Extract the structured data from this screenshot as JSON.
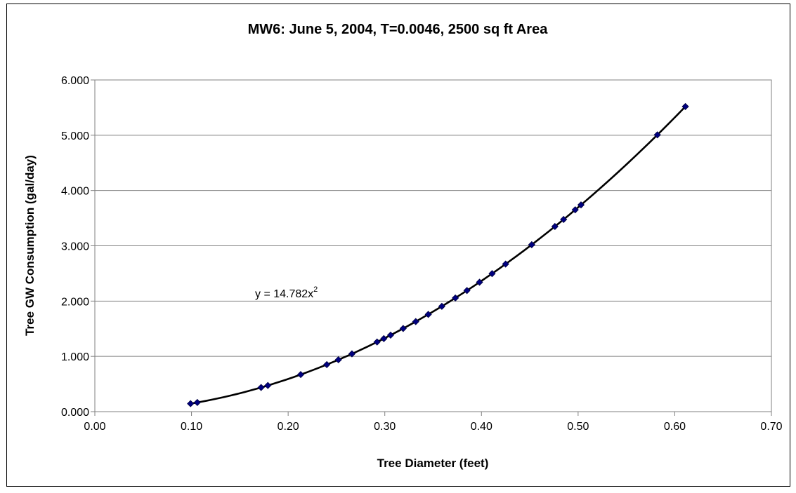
{
  "chart_data": {
    "type": "scatter",
    "title": "MW6: June 5,  2004, T=0.0046,  2500 sq ft Area",
    "xlabel": "Tree Diameter (feet)",
    "ylabel": "Tree GW Consumption (gal/day)",
    "xlim": [
      0.0,
      0.7
    ],
    "ylim": [
      0.0,
      6.0
    ],
    "x_ticks": [
      "0.00",
      "0.10",
      "0.20",
      "0.30",
      "0.40",
      "0.50",
      "0.60",
      "0.70"
    ],
    "y_ticks": [
      "0.000",
      "1.000",
      "2.000",
      "3.000",
      "4.000",
      "5.000",
      "6.000"
    ],
    "grid": "horizontal major gridlines",
    "legend": "none",
    "series": [
      {
        "marker": "diamond",
        "color": "#000080",
        "x": [
          0.099,
          0.106,
          0.172,
          0.179,
          0.213,
          0.24,
          0.252,
          0.266,
          0.292,
          0.299,
          0.306,
          0.319,
          0.332,
          0.345,
          0.359,
          0.373,
          0.385,
          0.398,
          0.411,
          0.425,
          0.452,
          0.476,
          0.485,
          0.497,
          0.503,
          0.582,
          0.611
        ],
        "y": [
          0.145,
          0.166,
          0.437,
          0.474,
          0.671,
          0.851,
          0.939,
          1.046,
          1.26,
          1.321,
          1.384,
          1.504,
          1.629,
          1.759,
          1.905,
          2.056,
          2.191,
          2.341,
          2.497,
          2.67,
          3.02,
          3.349,
          3.477,
          3.651,
          3.74,
          5.007,
          5.519
        ]
      }
    ],
    "trendline": {
      "type": "power",
      "coefficient": 14.782,
      "exponent": 2,
      "color": "#000000",
      "label": "y = 14.782x",
      "label_superscript": "2"
    }
  }
}
